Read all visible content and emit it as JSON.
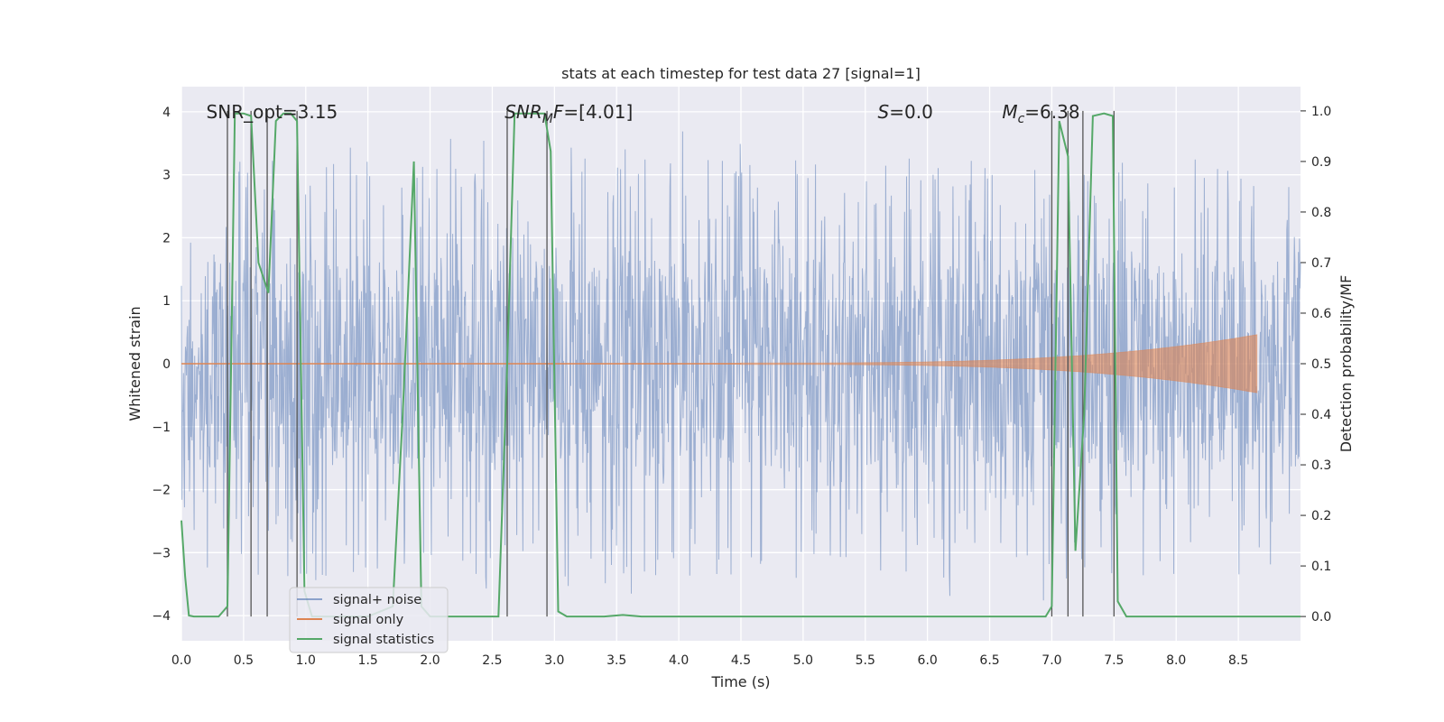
{
  "chart_data": {
    "type": "line",
    "title": "stats at each timestep for test data 27 [signal=1]",
    "xlabel": "Time (s)",
    "ylabel": "Whitened strain",
    "ylabel_right": "Detection probability/MF",
    "xlim": [
      0,
      9.0
    ],
    "ylim": [
      -4.4,
      4.4
    ],
    "ylim_right": [
      -0.048,
      1.048
    ],
    "x_ticks": [
      0.0,
      0.5,
      1.0,
      1.5,
      2.0,
      2.5,
      3.0,
      3.5,
      4.0,
      4.5,
      5.0,
      5.5,
      6.0,
      6.5,
      7.0,
      7.5,
      8.0,
      8.5
    ],
    "x_tick_labels": [
      "0.0",
      "0.5",
      "1.0",
      "1.5",
      "2.0",
      "2.5",
      "3.0",
      "3.5",
      "4.0",
      "4.5",
      "5.0",
      "5.5",
      "6.0",
      "6.5",
      "7.0",
      "7.5",
      "8.0",
      "8.5"
    ],
    "y_ticks": [
      4,
      3,
      2,
      1,
      0,
      -1,
      -2,
      -3,
      -4
    ],
    "y_tick_labels": [
      "4",
      "3",
      "2",
      "1",
      "0",
      "−1",
      "−2",
      "−3",
      "−4"
    ],
    "y_ticks_right": [
      1.0,
      0.9,
      0.8,
      0.7,
      0.6,
      0.5,
      0.4,
      0.3,
      0.2,
      0.1,
      0.0
    ],
    "y_tick_labels_right": [
      "1.0",
      "0.9",
      "0.8",
      "0.7",
      "0.6",
      "0.5",
      "0.4",
      "0.3",
      "0.2",
      "0.1",
      "0.0"
    ],
    "grid": true,
    "legend_position": "lower-left",
    "series": [
      {
        "name": "signal+ noise",
        "color": "#4c72b0",
        "axis": "left",
        "kind": "noise",
        "band_center": 0,
        "band_typical": [
          -1.65,
          1.65
        ],
        "spike_extent_observed": [
          -4.0,
          3.8
        ]
      },
      {
        "name": "signal only",
        "color": "#dd8452",
        "axis": "left",
        "kind": "chirp",
        "t_start": 4.5,
        "t_end": 8.65,
        "amplitude_end": 0.45
      },
      {
        "name": "signal statistics",
        "color": "#55a868",
        "axis": "right",
        "x": [
          0.0,
          0.03,
          0.06,
          0.1,
          0.2,
          0.3,
          0.37,
          0.4,
          0.43,
          0.5,
          0.56,
          0.62,
          0.7,
          0.76,
          0.82,
          0.88,
          0.93,
          0.99,
          1.05,
          1.2,
          1.5,
          1.7,
          1.78,
          1.87,
          1.93,
          2.0,
          2.2,
          2.55,
          2.62,
          2.68,
          2.8,
          2.92,
          2.97,
          3.03,
          3.1,
          3.4,
          3.55,
          3.7,
          6.95,
          7.0,
          7.06,
          7.13,
          7.19,
          7.26,
          7.33,
          7.42,
          7.49,
          7.53,
          7.6,
          9.0
        ],
        "y": [
          0.19,
          0.08,
          0.002,
          0.0,
          0.0,
          0.0,
          0.02,
          0.5,
          0.995,
          0.995,
          0.99,
          0.7,
          0.64,
          0.98,
          0.995,
          0.995,
          0.98,
          0.05,
          0.0,
          0.0,
          0.0,
          0.02,
          0.4,
          0.9,
          0.02,
          0.0,
          0.0,
          0.0,
          0.5,
          0.995,
          0.995,
          0.995,
          0.92,
          0.01,
          0.0,
          0.0,
          0.003,
          0.0,
          0.0,
          0.02,
          0.98,
          0.91,
          0.13,
          0.4,
          0.99,
          0.995,
          0.99,
          0.03,
          0.0,
          0.0
        ]
      }
    ],
    "vlines_x": [
      0.37,
      0.56,
      0.69,
      0.93,
      2.62,
      2.94,
      7.0,
      7.13,
      7.25,
      7.5
    ],
    "annotations": [
      {
        "id": "snr-opt",
        "text": "SNR_opt=3.15",
        "x": 0.2,
        "y": 4.0
      },
      {
        "id": "snr-mf",
        "main": "SNR",
        "sub": "M",
        "rest": "F=[4.01]",
        "x": 2.6,
        "y": 4.0
      },
      {
        "id": "s-value",
        "main": "S",
        "rest": "=0.0",
        "x": 5.6,
        "y": 4.0
      },
      {
        "id": "chirp-mass",
        "main": "M",
        "sub": "c",
        "rest": "=6.38",
        "x": 6.6,
        "y": 4.0
      }
    ]
  }
}
